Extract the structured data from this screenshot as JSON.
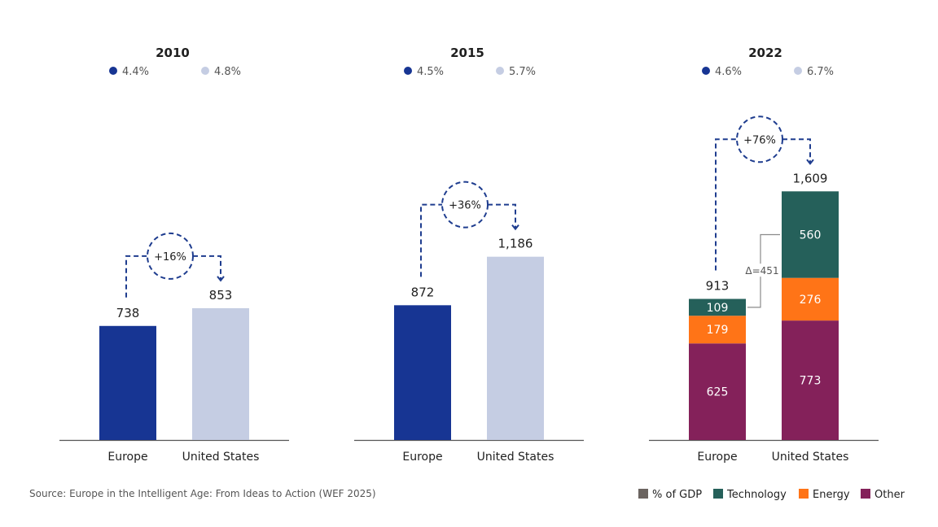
{
  "colors": {
    "europe": "#173593",
    "us": "#c5cde3",
    "technology": "#25605a",
    "energy": "#ff7417",
    "other": "#84215a",
    "gdp": "#6b6460",
    "connector": "#1f3d8f"
  },
  "chart_data": [
    {
      "type": "bar",
      "title": "2010",
      "categories": [
        "Europe",
        "United States"
      ],
      "values": [
        738,
        853
      ],
      "value_labels": [
        "738",
        "853"
      ],
      "gdp_share": [
        "4.4%",
        "4.8%"
      ],
      "difference_label": "+16%"
    },
    {
      "type": "bar",
      "title": "2015",
      "categories": [
        "Europe",
        "United States"
      ],
      "values": [
        872,
        1186
      ],
      "value_labels": [
        "872",
        "1,186"
      ],
      "gdp_share": [
        "4.5%",
        "5.7%"
      ],
      "difference_label": "+36%"
    },
    {
      "type": "bar",
      "stacked": true,
      "title": "2022",
      "categories": [
        "Europe",
        "United States"
      ],
      "values": [
        913,
        1609
      ],
      "value_labels": [
        "913",
        "1,609"
      ],
      "gdp_share": [
        "4.6%",
        "6.7%"
      ],
      "difference_label": "+76%",
      "series": [
        {
          "name": "Other",
          "values": [
            625,
            773
          ]
        },
        {
          "name": "Energy",
          "values": [
            179,
            276
          ]
        },
        {
          "name": "Technology",
          "values": [
            109,
            560
          ]
        }
      ],
      "technology_gap_label": "Δ=451"
    }
  ],
  "legend": {
    "items": [
      {
        "label": "% of GDP",
        "color": "#6b6460"
      },
      {
        "label": "Technology",
        "color": "#25605a"
      },
      {
        "label": "Energy",
        "color": "#ff7417"
      },
      {
        "label": "Other",
        "color": "#84215a"
      }
    ]
  },
  "source": "Source: Europe in the Intelligent Age: From Ideas to Action (WEF 2025)"
}
